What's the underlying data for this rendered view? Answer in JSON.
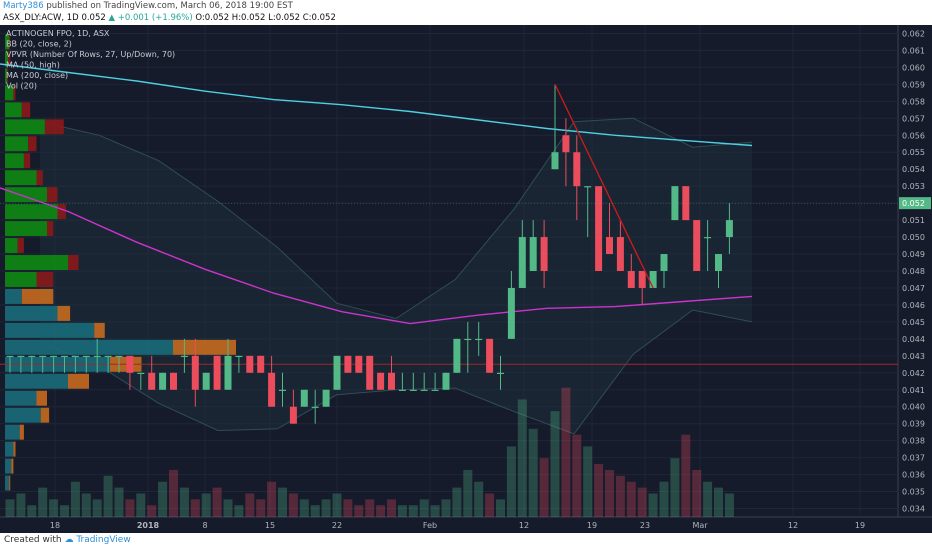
{
  "header": {
    "user": "Marty386",
    "published": "published on TradingView.com, March 06, 2018 19:00 EST",
    "symbol": "ASX_DLY:ACW, 1D",
    "last": "0.052",
    "change": "+0.001 (+1.96%)",
    "ohlc": "O:0.052 H:0.052 L:0.052 C:0.052"
  },
  "footer": {
    "created": "Created with",
    "brand": "TradingView"
  },
  "colors": {
    "bg": "#151b2a",
    "up": "#53b987",
    "down": "#eb4d5c",
    "ma50": "#cc33cc",
    "ma200": "#4dd0e1",
    "vpvr_up": "#0e8a12",
    "vpvr_down": "#8b1a1a",
    "vpvr_teal": "#1a6b7a",
    "vpvr_orange": "#c76a1f"
  },
  "indicators": [
    "ACTINOGEN FPO, 1D, ASX",
    "BB (20, close, 2)",
    "VPVR (Number Of Rows, 27, Up/Down, 70)",
    "MA (50, high)",
    "MA (200, close)",
    "Vol (20)"
  ],
  "chart_data": {
    "type": "candlestick",
    "x_axis": {
      "labels": [
        "18",
        "2018",
        "8",
        "15",
        "22",
        "Feb",
        "12",
        "19",
        "23",
        "Mar",
        "12",
        "19"
      ]
    },
    "y_axis": {
      "min": 0.0335,
      "max": 0.0625,
      "ticks": [
        "0.062",
        "0.061",
        "0.060",
        "0.059",
        "0.058",
        "0.057",
        "0.056",
        "0.055",
        "0.054",
        "0.053",
        "0.052",
        "0.051",
        "0.050",
        "0.049",
        "0.048",
        "0.047",
        "0.046",
        "0.045",
        "0.044",
        "0.043",
        "0.042",
        "0.041",
        "0.040",
        "0.039",
        "0.038",
        "0.037",
        "0.036",
        "0.035",
        "0.034"
      ],
      "last_price_label": "0.052"
    },
    "candles": [
      {
        "o": 0.043,
        "h": 0.043,
        "l": 0.042,
        "c": 0.043
      },
      {
        "o": 0.043,
        "h": 0.043,
        "l": 0.042,
        "c": 0.043
      },
      {
        "o": 0.043,
        "h": 0.043,
        "l": 0.042,
        "c": 0.043
      },
      {
        "o": 0.043,
        "h": 0.043,
        "l": 0.042,
        "c": 0.043
      },
      {
        "o": 0.043,
        "h": 0.043,
        "l": 0.042,
        "c": 0.043
      },
      {
        "o": 0.043,
        "h": 0.043,
        "l": 0.042,
        "c": 0.043
      },
      {
        "o": 0.043,
        "h": 0.043,
        "l": 0.042,
        "c": 0.043
      },
      {
        "o": 0.043,
        "h": 0.043,
        "l": 0.042,
        "c": 0.043
      },
      {
        "o": 0.043,
        "h": 0.044,
        "l": 0.042,
        "c": 0.043
      },
      {
        "o": 0.043,
        "h": 0.043,
        "l": 0.042,
        "c": 0.043
      },
      {
        "o": 0.043,
        "h": 0.043,
        "l": 0.042,
        "c": 0.043
      },
      {
        "o": 0.043,
        "h": 0.043,
        "l": 0.041,
        "c": 0.042
      },
      {
        "o": 0.042,
        "h": 0.042,
        "l": 0.041,
        "c": 0.042
      },
      {
        "o": 0.042,
        "h": 0.043,
        "l": 0.041,
        "c": 0.041
      },
      {
        "o": 0.041,
        "h": 0.042,
        "l": 0.041,
        "c": 0.042
      },
      {
        "o": 0.042,
        "h": 0.042,
        "l": 0.041,
        "c": 0.041
      },
      {
        "o": 0.043,
        "h": 0.044,
        "l": 0.042,
        "c": 0.043
      },
      {
        "o": 0.043,
        "h": 0.044,
        "l": 0.04,
        "c": 0.041
      },
      {
        "o": 0.041,
        "h": 0.042,
        "l": 0.041,
        "c": 0.042
      },
      {
        "o": 0.043,
        "h": 0.043,
        "l": 0.041,
        "c": 0.041
      },
      {
        "o": 0.041,
        "h": 0.044,
        "l": 0.041,
        "c": 0.043
      },
      {
        "o": 0.043,
        "h": 0.043,
        "l": 0.042,
        "c": 0.043
      },
      {
        "o": 0.043,
        "h": 0.043,
        "l": 0.042,
        "c": 0.042
      },
      {
        "o": 0.043,
        "h": 0.043,
        "l": 0.042,
        "c": 0.042
      },
      {
        "o": 0.042,
        "h": 0.043,
        "l": 0.04,
        "c": 0.04
      },
      {
        "o": 0.041,
        "h": 0.042,
        "l": 0.04,
        "c": 0.041
      },
      {
        "o": 0.04,
        "h": 0.041,
        "l": 0.039,
        "c": 0.039
      },
      {
        "o": 0.04,
        "h": 0.041,
        "l": 0.04,
        "c": 0.041
      },
      {
        "o": 0.04,
        "h": 0.041,
        "l": 0.039,
        "c": 0.04
      },
      {
        "o": 0.04,
        "h": 0.041,
        "l": 0.04,
        "c": 0.041
      },
      {
        "o": 0.041,
        "h": 0.043,
        "l": 0.041,
        "c": 0.043
      },
      {
        "o": 0.043,
        "h": 0.043,
        "l": 0.042,
        "c": 0.042
      },
      {
        "o": 0.043,
        "h": 0.043,
        "l": 0.042,
        "c": 0.042
      },
      {
        "o": 0.043,
        "h": 0.043,
        "l": 0.041,
        "c": 0.041
      },
      {
        "o": 0.042,
        "h": 0.042,
        "l": 0.041,
        "c": 0.041
      },
      {
        "o": 0.042,
        "h": 0.043,
        "l": 0.041,
        "c": 0.041
      },
      {
        "o": 0.041,
        "h": 0.042,
        "l": 0.041,
        "c": 0.041
      },
      {
        "o": 0.041,
        "h": 0.042,
        "l": 0.041,
        "c": 0.041
      },
      {
        "o": 0.041,
        "h": 0.042,
        "l": 0.041,
        "c": 0.041
      },
      {
        "o": 0.041,
        "h": 0.042,
        "l": 0.041,
        "c": 0.041
      },
      {
        "o": 0.041,
        "h": 0.042,
        "l": 0.041,
        "c": 0.042
      },
      {
        "o": 0.042,
        "h": 0.044,
        "l": 0.042,
        "c": 0.044
      },
      {
        "o": 0.044,
        "h": 0.045,
        "l": 0.042,
        "c": 0.044
      },
      {
        "o": 0.044,
        "h": 0.045,
        "l": 0.043,
        "c": 0.044
      },
      {
        "o": 0.044,
        "h": 0.044,
        "l": 0.042,
        "c": 0.042
      },
      {
        "o": 0.042,
        "h": 0.043,
        "l": 0.041,
        "c": 0.042
      },
      {
        "o": 0.044,
        "h": 0.048,
        "l": 0.044,
        "c": 0.047
      },
      {
        "o": 0.047,
        "h": 0.051,
        "l": 0.047,
        "c": 0.05
      },
      {
        "o": 0.048,
        "h": 0.051,
        "l": 0.048,
        "c": 0.05
      },
      {
        "o": 0.05,
        "h": 0.051,
        "l": 0.047,
        "c": 0.048
      },
      {
        "o": 0.054,
        "h": 0.059,
        "l": 0.054,
        "c": 0.055
      },
      {
        "o": 0.056,
        "h": 0.057,
        "l": 0.053,
        "c": 0.055
      },
      {
        "o": 0.055,
        "h": 0.056,
        "l": 0.051,
        "c": 0.053
      },
      {
        "o": 0.053,
        "h": 0.053,
        "l": 0.05,
        "c": 0.053
      },
      {
        "o": 0.053,
        "h": 0.053,
        "l": 0.048,
        "c": 0.048
      },
      {
        "o": 0.05,
        "h": 0.052,
        "l": 0.049,
        "c": 0.049
      },
      {
        "o": 0.05,
        "h": 0.051,
        "l": 0.048,
        "c": 0.048
      },
      {
        "o": 0.048,
        "h": 0.049,
        "l": 0.047,
        "c": 0.047
      },
      {
        "o": 0.048,
        "h": 0.048,
        "l": 0.046,
        "c": 0.047
      },
      {
        "o": 0.047,
        "h": 0.048,
        "l": 0.047,
        "c": 0.048
      },
      {
        "o": 0.048,
        "h": 0.049,
        "l": 0.047,
        "c": 0.049
      },
      {
        "o": 0.051,
        "h": 0.053,
        "l": 0.051,
        "c": 0.053
      },
      {
        "o": 0.053,
        "h": 0.053,
        "l": 0.051,
        "c": 0.051
      },
      {
        "o": 0.051,
        "h": 0.051,
        "l": 0.048,
        "c": 0.048
      },
      {
        "o": 0.05,
        "h": 0.051,
        "l": 0.048,
        "c": 0.05
      },
      {
        "o": 0.048,
        "h": 0.049,
        "l": 0.047,
        "c": 0.049
      },
      {
        "o": 0.05,
        "h": 0.052,
        "l": 0.049,
        "c": 0.051
      }
    ],
    "ma200": [
      0.0602,
      0.0597,
      0.0592,
      0.0586,
      0.0581,
      0.0578,
      0.0574,
      0.0569,
      0.0564,
      0.056,
      0.0557,
      0.0554
    ],
    "ma50": [
      0.0529,
      0.0515,
      0.0497,
      0.0481,
      0.0467,
      0.0456,
      0.0449,
      0.0454,
      0.0458,
      0.0459,
      0.0462,
      0.0465
    ],
    "bb_upper": [
      0.0568,
      0.056,
      0.0545,
      0.0521,
      0.0494,
      0.0461,
      0.0452,
      0.0475,
      0.0517,
      0.0568,
      0.057,
      0.0553,
      0.0556
    ],
    "bb_lower": [
      0.0438,
      0.0424,
      0.0402,
      0.0386,
      0.0387,
      0.0407,
      0.041,
      0.0411,
      0.0397,
      0.0384,
      0.0431,
      0.0457,
      0.045
    ],
    "volume": [
      3,
      4,
      2,
      5,
      3,
      2,
      6,
      4,
      3,
      7,
      5,
      3,
      4,
      2,
      6,
      8,
      5,
      3,
      4,
      5,
      3,
      2,
      4,
      3,
      6,
      5,
      4,
      3,
      2,
      3,
      4,
      3,
      2,
      3,
      2,
      3,
      2,
      2,
      3,
      2,
      3,
      5,
      8,
      6,
      4,
      3,
      12,
      20,
      15,
      10,
      18,
      22,
      14,
      12,
      9,
      8,
      7,
      6,
      5,
      4,
      6,
      10,
      14,
      8,
      6,
      5,
      4
    ],
    "vol_max": 25,
    "vpvr": [
      {
        "price": 0.0615,
        "up": 4,
        "down": 1
      },
      {
        "price": 0.0605,
        "up": 3,
        "down": 2
      },
      {
        "price": 0.0595,
        "up": 2,
        "down": 1
      },
      {
        "price": 0.0585,
        "up": 8,
        "down": 2
      },
      {
        "price": 0.0575,
        "up": 16,
        "down": 8
      },
      {
        "price": 0.0565,
        "up": 38,
        "down": 18
      },
      {
        "price": 0.0555,
        "up": 22,
        "down": 8
      },
      {
        "price": 0.0545,
        "up": 18,
        "down": 6
      },
      {
        "price": 0.0535,
        "up": 30,
        "down": 6
      },
      {
        "price": 0.0525,
        "up": 40,
        "down": 10
      },
      {
        "price": 0.0515,
        "up": 50,
        "down": 8
      },
      {
        "price": 0.0505,
        "up": 40,
        "down": 6
      },
      {
        "price": 0.0495,
        "up": 12,
        "down": 6
      },
      {
        "price": 0.0485,
        "up": 60,
        "down": 10
      },
      {
        "price": 0.0475,
        "up": 30,
        "down": 16
      },
      {
        "price": 0.0465,
        "up": 16,
        "down": 30
      },
      {
        "price": 0.0455,
        "up": 50,
        "down": 12
      },
      {
        "price": 0.0445,
        "up": 85,
        "down": 10
      },
      {
        "price": 0.0435,
        "up": 160,
        "down": 60
      },
      {
        "price": 0.0425,
        "up": 100,
        "down": 30
      },
      {
        "price": 0.0415,
        "up": 60,
        "down": 20
      },
      {
        "price": 0.0405,
        "up": 30,
        "down": 10
      },
      {
        "price": 0.0395,
        "up": 34,
        "down": 8
      },
      {
        "price": 0.0385,
        "up": 14,
        "down": 4
      },
      {
        "price": 0.0375,
        "up": 8,
        "down": 2
      },
      {
        "price": 0.0365,
        "up": 6,
        "down": 2
      },
      {
        "price": 0.0355,
        "up": 4,
        "down": 1
      }
    ],
    "trendline": [
      {
        "i": 50,
        "price": 0.059
      },
      {
        "i": 59,
        "price": 0.047
      }
    ],
    "last_price": 0.052
  }
}
